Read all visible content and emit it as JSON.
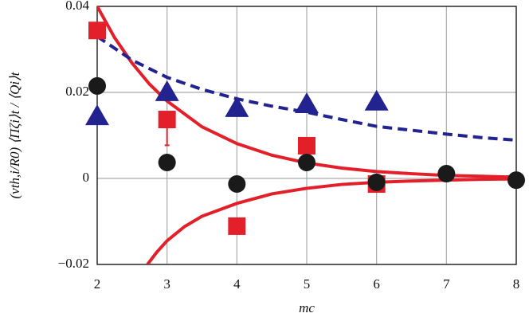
{
  "chart_data": {
    "type": "scatter",
    "xlabel": "mc",
    "ylabel": "(vth,i/R0) ⟨Πζi⟩t / ⟨Qi⟩t",
    "xlim": [
      2,
      8
    ],
    "xticks": [
      2,
      3,
      4,
      5,
      6,
      7,
      8
    ],
    "ylim": [
      -0.02,
      0.04
    ],
    "yticks": [
      {
        "value": -0.02,
        "label": "−0.02"
      },
      {
        "value": 0,
        "label": "0"
      },
      0.02,
      0.04
    ],
    "grid": true,
    "series": [
      {
        "color": "#e3202a",
        "style": "solid",
        "x": [
          2,
          2.25,
          2.5,
          2.75,
          3,
          3.5,
          4,
          4.5,
          5,
          5.5,
          6,
          6.5,
          7,
          7.5,
          8
        ],
        "values": [
          0.04,
          0.0327,
          0.0268,
          0.0219,
          0.018,
          0.012,
          0.0081,
          0.0054,
          0.0036,
          0.0024,
          0.0016,
          0.0011,
          0.0007,
          0.0005,
          0.0003
        ]
      },
      {
        "color": "#e3202a",
        "style": "solid",
        "x": [
          2.72,
          2.85,
          3,
          3.25,
          3.5,
          4,
          4.5,
          5,
          5.5,
          6,
          6.5,
          7,
          7.5,
          8
        ],
        "values": [
          -0.02,
          -0.0172,
          -0.0145,
          -0.0112,
          -0.0088,
          -0.0058,
          -0.0036,
          -0.0023,
          -0.0014,
          -0.0009,
          -0.0006,
          -0.0004,
          -0.0002,
          -0.0001
        ]
      },
      {
        "color": "#23238f",
        "style": "dashed",
        "x": [
          2,
          2.5,
          3,
          3.5,
          4,
          4.5,
          5,
          5.5,
          6,
          6.5,
          7,
          7.5,
          8
        ],
        "values": [
          0.033,
          0.0275,
          0.0235,
          0.0207,
          0.0185,
          0.0168,
          0.0154,
          0.0137,
          0.0121,
          0.0112,
          0.0103,
          0.0095,
          0.0089
        ]
      },
      {
        "color": "#e3202a",
        "marker": "square",
        "x": [
          2,
          3,
          4,
          5,
          6
        ],
        "values": [
          0.0344,
          0.0137,
          -0.0111,
          0.0076,
          -0.0013
        ],
        "errors": [
          null,
          0.006,
          null,
          null,
          null
        ]
      },
      {
        "color": "#1a1a1a",
        "marker": "circle",
        "x": [
          2,
          3,
          4,
          5,
          6,
          7,
          8
        ],
        "values": [
          0.0215,
          0.0037,
          -0.0013,
          0.0037,
          -0.0009,
          0.0011,
          -0.0004
        ]
      },
      {
        "color": "#23238f",
        "marker": "triangle",
        "x": [
          2,
          3,
          4,
          5,
          6
        ],
        "values": [
          0.0146,
          0.0202,
          0.0165,
          0.0174,
          0.018
        ]
      }
    ]
  }
}
